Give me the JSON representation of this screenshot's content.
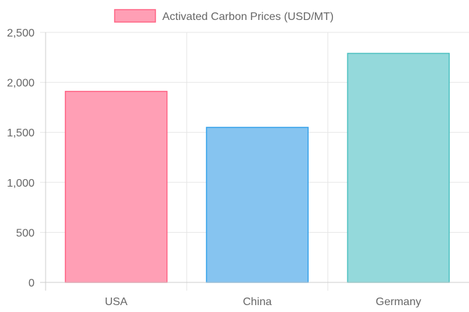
{
  "chart_data": {
    "type": "bar",
    "categories": [
      "USA",
      "China",
      "Germany"
    ],
    "series": [
      {
        "name": "Activated Carbon Prices (USD/MT)",
        "values": [
          1910,
          1550,
          2290
        ],
        "fill_colors": [
          "#ff9fb5",
          "#86c4f0",
          "#94d9db"
        ],
        "border_colors": [
          "#ff6384",
          "#36a2eb",
          "#4bc0c0"
        ]
      }
    ],
    "ylim": [
      0,
      2500
    ],
    "yticks": [
      "0",
      "500",
      "1,000",
      "1,500",
      "2,000",
      "2,500"
    ],
    "grid": true,
    "legend": "top-center"
  }
}
